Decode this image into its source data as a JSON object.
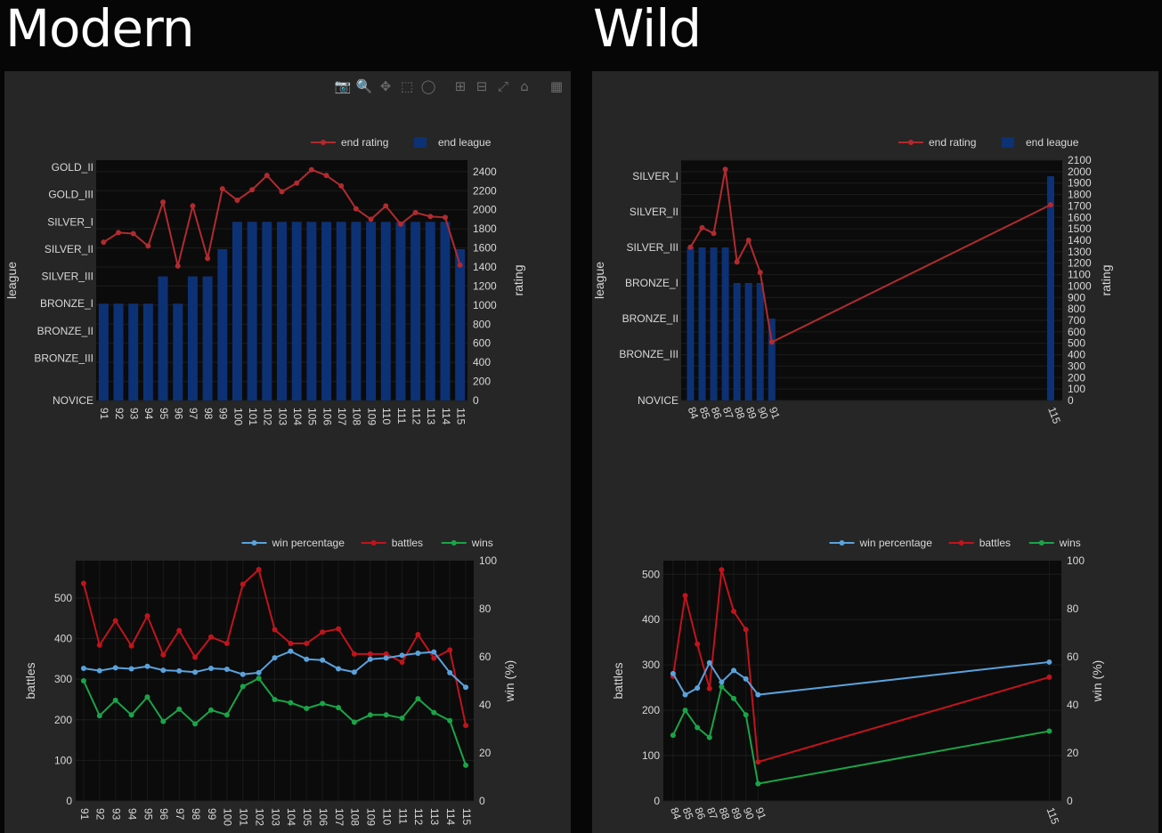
{
  "sections": {
    "modern_title": "Modern",
    "wild_title": "Wild"
  },
  "modebar": [
    {
      "name": "camera-icon",
      "glyph": "📷"
    },
    {
      "name": "zoom-icon",
      "glyph": "🔍"
    },
    {
      "name": "pan-icon",
      "glyph": "✥"
    },
    {
      "name": "box-select-icon",
      "glyph": "⬚"
    },
    {
      "name": "lasso-select-icon",
      "glyph": "◯"
    },
    {
      "name": "zoom-in-icon",
      "glyph": "⊞"
    },
    {
      "name": "zoom-out-icon",
      "glyph": "⊟"
    },
    {
      "name": "autoscale-icon",
      "glyph": "⤢"
    },
    {
      "name": "reset-axes-icon",
      "glyph": "⌂"
    },
    {
      "name": "plotly-logo-icon",
      "glyph": "▦"
    }
  ],
  "colors": {
    "end_rating": "#b02b2f",
    "end_league": "#0d3175",
    "win_percentage": "#5aa2dc",
    "battles": "#c0141c",
    "wins": "#1aa448",
    "plot_bg": "#0b0b0b",
    "panel_bg": "#262626"
  },
  "chart_data": [
    {
      "id": "modern-league",
      "type": "bar",
      "legend": [
        "end rating",
        "end league"
      ],
      "x": [
        "91",
        "92",
        "93",
        "94",
        "95",
        "96",
        "97",
        "98",
        "99",
        "100",
        "101",
        "102",
        "103",
        "104",
        "105",
        "106",
        "107",
        "108",
        "109",
        "110",
        "111",
        "112",
        "113",
        "114",
        "115"
      ],
      "league_levels": [
        "NOVICE",
        "BRONZE_III",
        "BRONZE_II",
        "BRONZE_I",
        "SILVER_III",
        "SILVER_II",
        "SILVER_I",
        "GOLD_III",
        "GOLD_II"
      ],
      "end_league": [
        "BRONZE_I",
        "BRONZE_I",
        "BRONZE_I",
        "BRONZE_I",
        "SILVER_III",
        "BRONZE_I",
        "SILVER_III",
        "SILVER_III",
        "SILVER_II",
        "SILVER_I",
        "SILVER_I",
        "SILVER_I",
        "SILVER_I",
        "SILVER_I",
        "SILVER_I",
        "SILVER_I",
        "SILVER_I",
        "SILVER_I",
        "SILVER_I",
        "SILVER_I",
        "SILVER_I",
        "SILVER_I",
        "SILVER_I",
        "SILVER_I",
        "SILVER_II"
      ],
      "end_rating": [
        1660,
        1760,
        1750,
        1620,
        2080,
        1410,
        2040,
        1490,
        2220,
        2100,
        2210,
        2360,
        2190,
        2280,
        2420,
        2360,
        2250,
        2010,
        1900,
        2040,
        1850,
        1970,
        1930,
        1920,
        1420
      ],
      "ylabel_left": "league",
      "ylabel_right": "rating",
      "rating_ticks": [
        0,
        200,
        400,
        600,
        800,
        1000,
        1200,
        1400,
        1600,
        1800,
        2000,
        2200,
        2400
      ],
      "rating_range": [
        0,
        2520
      ]
    },
    {
      "id": "wild-league",
      "type": "bar",
      "legend": [
        "end rating",
        "end league"
      ],
      "x": [
        84,
        85,
        86,
        87,
        88,
        89,
        90,
        91,
        115
      ],
      "x_ticks": [
        84,
        85,
        86,
        87,
        88,
        89,
        90,
        91,
        115
      ],
      "x_range": [
        83.2,
        116
      ],
      "league_levels": [
        "NOVICE",
        "BRONZE_III",
        "BRONZE_II",
        "BRONZE_I",
        "SILVER_III",
        "SILVER_II",
        "SILVER_I"
      ],
      "end_league": [
        "SILVER_III",
        "SILVER_III",
        "SILVER_III",
        "SILVER_III",
        "BRONZE_I",
        "BRONZE_I",
        "BRONZE_I",
        "BRONZE_II",
        "SILVER_I"
      ],
      "end_rating": [
        1340,
        1510,
        1460,
        2020,
        1210,
        1400,
        1120,
        510,
        1710
      ],
      "ylabel_left": "league",
      "ylabel_right": "rating",
      "rating_ticks": [
        0,
        100,
        200,
        300,
        400,
        500,
        600,
        700,
        800,
        900,
        1000,
        1100,
        1200,
        1300,
        1400,
        1500,
        1600,
        1700,
        1800,
        1900,
        2000,
        2100
      ],
      "rating_range": [
        0,
        2100
      ]
    },
    {
      "id": "modern-battles",
      "type": "line",
      "legend": [
        "win percentage",
        "battles",
        "wins"
      ],
      "x": [
        "91",
        "92",
        "93",
        "94",
        "95",
        "96",
        "97",
        "98",
        "99",
        "100",
        "101",
        "102",
        "103",
        "104",
        "105",
        "106",
        "107",
        "108",
        "109",
        "110",
        "111",
        "112",
        "113",
        "114",
        "115"
      ],
      "battles": [
        536,
        384,
        444,
        382,
        456,
        360,
        420,
        354,
        404,
        388,
        534,
        570,
        422,
        388,
        388,
        416,
        424,
        362,
        362,
        362,
        342,
        410,
        352,
        372,
        186
      ],
      "wins": [
        296,
        210,
        248,
        212,
        256,
        196,
        226,
        190,
        224,
        212,
        282,
        302,
        250,
        242,
        228,
        240,
        230,
        194,
        212,
        212,
        204,
        252,
        218,
        198,
        88
      ],
      "win_percentage": [
        55.2,
        54.2,
        55.4,
        55.0,
        56.0,
        54.4,
        54.1,
        53.6,
        55.2,
        54.8,
        52.7,
        53.4,
        59.6,
        62.3,
        59.0,
        58.6,
        55.0,
        53.6,
        59.0,
        59.5,
        60.6,
        61.5,
        62.0,
        53.4,
        47.3
      ],
      "ylabel_left": "battles",
      "ylabel_right": "win (%)",
      "battles_ticks": [
        0,
        100,
        200,
        300,
        400,
        500
      ],
      "battles_range": [
        0,
        592
      ],
      "win_ticks": [
        0,
        20,
        40,
        60,
        80,
        100
      ],
      "win_range": [
        0,
        100
      ]
    },
    {
      "id": "wild-battles",
      "type": "line",
      "legend": [
        "win percentage",
        "battles",
        "wins"
      ],
      "x": [
        84,
        85,
        86,
        87,
        88,
        89,
        90,
        91,
        115
      ],
      "x_ticks": [
        84,
        85,
        86,
        87,
        88,
        89,
        90,
        91,
        115
      ],
      "x_range": [
        83.2,
        116
      ],
      "battles": [
        275,
        453,
        346,
        248,
        510,
        418,
        378,
        86,
        273
      ],
      "wins": [
        145,
        200,
        162,
        140,
        252,
        226,
        190,
        38,
        154
      ],
      "win_percentage": [
        53.0,
        44.2,
        47.0,
        57.5,
        49.5,
        54.3,
        50.8,
        44.2,
        57.8
      ],
      "ylabel_left": "battles",
      "ylabel_right": "win (%)",
      "battles_ticks": [
        0,
        100,
        200,
        300,
        400,
        500
      ],
      "battles_range": [
        0,
        530
      ],
      "win_ticks": [
        0,
        20,
        40,
        60,
        80,
        100
      ],
      "win_range": [
        0,
        100
      ]
    }
  ]
}
